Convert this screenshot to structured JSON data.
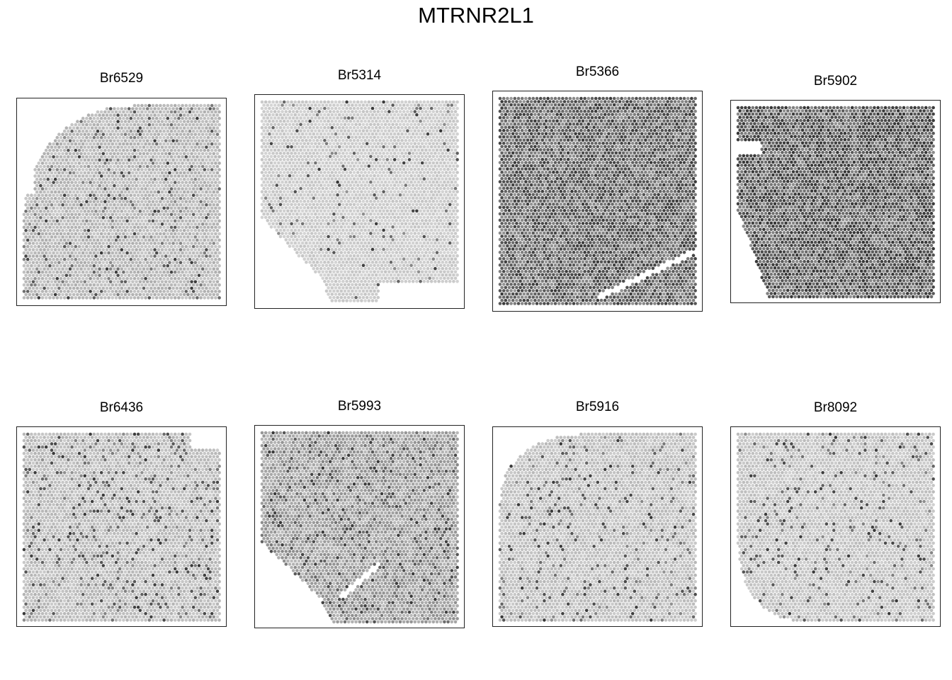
{
  "title": "MTRNR2L1",
  "chart_data": [
    {
      "type": "scatter",
      "title": "Br6529",
      "mean_level": 0.22,
      "hotspot_rate": 0.1,
      "shape": "rounded-top-right",
      "gaps": []
    },
    {
      "type": "scatter",
      "title": "Br5314",
      "mean_level": 0.12,
      "hotspot_rate": 0.06,
      "shape": "cut-bottom-left",
      "gaps": [
        "bottom-right"
      ]
    },
    {
      "type": "scatter",
      "title": "Br5366",
      "mean_level": 0.7,
      "hotspot_rate": 0.25,
      "shape": "full",
      "gaps": [
        "diagonal-bottom-right"
      ]
    },
    {
      "type": "scatter",
      "title": "Br5902",
      "mean_level": 0.78,
      "hotspot_rate": 0.2,
      "shape": "cut-left",
      "gaps": [
        "notch-left"
      ]
    },
    {
      "type": "scatter",
      "title": "Br6436",
      "mean_level": 0.2,
      "hotspot_rate": 0.13,
      "shape": "full",
      "gaps": [
        "top-right"
      ]
    },
    {
      "type": "scatter",
      "title": "Br5993",
      "mean_level": 0.35,
      "hotspot_rate": 0.18,
      "shape": "cut-bottom-left",
      "gaps": [
        "diagonal-bottom"
      ]
    },
    {
      "type": "scatter",
      "title": "Br5916",
      "mean_level": 0.18,
      "hotspot_rate": 0.1,
      "shape": "rounded-top-left",
      "gaps": []
    },
    {
      "type": "scatter",
      "title": "Br8092",
      "mean_level": 0.16,
      "hotspot_rate": 0.1,
      "shape": "rounded-bottom-left",
      "gaps": []
    }
  ]
}
